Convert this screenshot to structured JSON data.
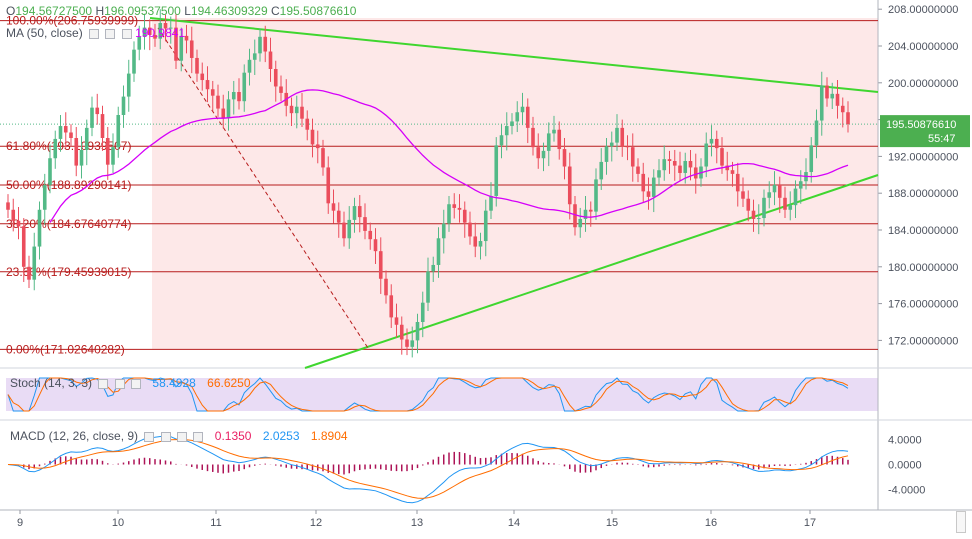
{
  "header": {
    "ohlc": [
      {
        "key": "O",
        "value": "194.56727500"
      },
      {
        "key": "H",
        "value": "196.09537500"
      },
      {
        "key": "L",
        "value": "194.46309329"
      },
      {
        "key": "C",
        "value": "195.50876610"
      }
    ],
    "ma_label": "MA (50, close)",
    "ma_value": "190.9841"
  },
  "price_axis": {
    "ticks": [
      "208.00000000",
      "204.00000000",
      "200.00000000",
      "196.00000000",
      "192.00000000",
      "188.00000000",
      "184.00000000",
      "180.00000000",
      "176.00000000",
      "172.00000000"
    ],
    "last_price": "195.50876610",
    "countdown": "55:47"
  },
  "fib_levels": [
    {
      "label": "100.00%(206.75939999)",
      "value": 206.75939999
    },
    {
      "label": "61.80%(193.10939507)",
      "value": 193.10939507
    },
    {
      "label": "50.00%(188.89290141)",
      "value": 188.89290141
    },
    {
      "label": "38.20%(184.67640774)",
      "value": 184.67640774
    },
    {
      "label": "23.60%(179.45939015)",
      "value": 179.45939015
    },
    {
      "label": "0.00%(171.02640282)",
      "value": 171.02640282
    }
  ],
  "stoch": {
    "label": "Stoch (14, 3, 3)",
    "k": "58.4928",
    "d": "66.6250"
  },
  "macd": {
    "label": "MACD (12, 26, close, 9)",
    "hist": "0.1350",
    "macd": "2.0253",
    "signal": "1.8904",
    "ticks": [
      "4.0000",
      "0.0000",
      "-4.0000"
    ]
  },
  "time_axis": {
    "labels": [
      "9",
      "10",
      "11",
      "12",
      "13",
      "14",
      "15",
      "16",
      "17"
    ]
  },
  "colors": {
    "up": "#53b987",
    "down": "#eb4d5c",
    "fib": "#b71c1c",
    "trend": "#3fd62f",
    "ma": "#d500f9",
    "stoch_k": "#2196f3",
    "stoch_d": "#ff6d00"
  },
  "chart_data": {
    "type": "candlestick",
    "ylim": [
      169,
      209
    ],
    "close": [
      186.2,
      185.0,
      184.4,
      180.0,
      178.6,
      182.2,
      186.2,
      188.9,
      191.8,
      193.9,
      195.3,
      194.6,
      194.0,
      191.0,
      192.7,
      195.1,
      197.3,
      196.6,
      194.0,
      191.1,
      193.0,
      196.5,
      198.5,
      201.0,
      203.6,
      205.0,
      206.0,
      205.2,
      204.8,
      206.5,
      205.9,
      206.0,
      202.4,
      205.1,
      204.6,
      202.7,
      201.0,
      200.3,
      199.3,
      198.6,
      197.2,
      196.2,
      198.2,
      199.0,
      198.0,
      201.1,
      202.5,
      203.2,
      205.0,
      203.4,
      201.5,
      199.6,
      198.9,
      197.5,
      196.7,
      197.4,
      196.1,
      194.9,
      193.3,
      192.9,
      190.8,
      186.9,
      186.1,
      184.8,
      183.1,
      185.1,
      186.6,
      185.4,
      183.9,
      183.0,
      181.7,
      178.7,
      176.9,
      174.5,
      173.7,
      172.1,
      171.3,
      172.0,
      174.0,
      176.1,
      179.5,
      180.2,
      183.1,
      184.7,
      186.8,
      186.4,
      186.2,
      184.8,
      183.3,
      182.2,
      182.8,
      186.1,
      187.7,
      193.2,
      194.3,
      195.3,
      195.8,
      196.8,
      197.4,
      195.1,
      193.0,
      191.8,
      192.6,
      194.5,
      194.9,
      192.8,
      190.9,
      186.8,
      184.3,
      185.2,
      186.2,
      186.0,
      189.5,
      191.4,
      193.1,
      193.5,
      195.1,
      193.1,
      193.0,
      190.9,
      190.1,
      188.2,
      187.6,
      189.7,
      190.5,
      191.7,
      191.5,
      191.0,
      190.2,
      191.5,
      190.8,
      189.6,
      190.9,
      193.4,
      193.9,
      192.9,
      191.0,
      190.5,
      190.1,
      188.2,
      187.4,
      186.1,
      185.2,
      185.3,
      187.5,
      188.1,
      188.9,
      187.5,
      186.2,
      186.7,
      188.5,
      189.3,
      190.3,
      193.2,
      195.9,
      199.7,
      198.3,
      198.8,
      197.5,
      196.8,
      195.5
    ]
  }
}
